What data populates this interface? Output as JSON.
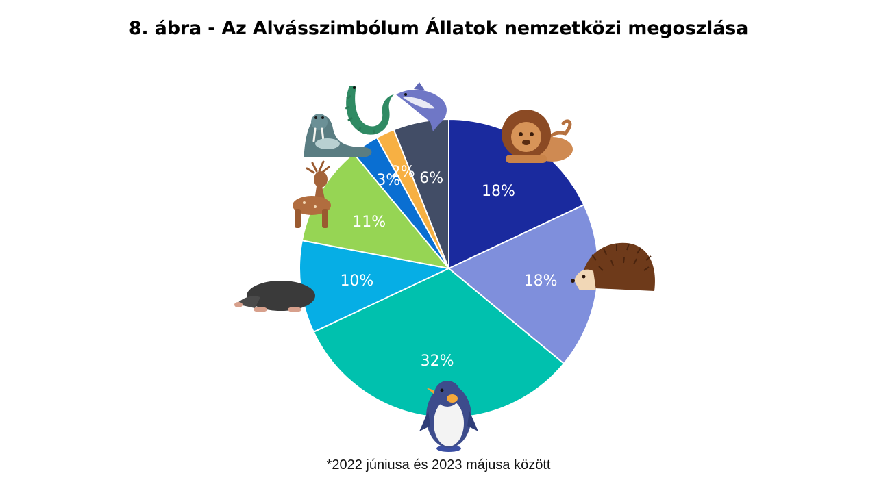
{
  "title": "8. ábra - Az Alvásszimbólum Állatok nemzetközi megoszlása",
  "footnote": "*2022 júniusa és 2023 májusa között",
  "chart_data": {
    "type": "pie",
    "start_angle_deg": 0,
    "direction": "clockwise",
    "slices": [
      {
        "label": "18%",
        "value": 18,
        "color": "#1a2a9e",
        "animal": "lion-icon"
      },
      {
        "label": "18%",
        "value": 18,
        "color": "#7f8fdc",
        "animal": "hedgehog-icon"
      },
      {
        "label": "32%",
        "value": 32,
        "color": "#00c1ae",
        "animal": "penguin-icon"
      },
      {
        "label": "10%",
        "value": 10,
        "color": "#06aee5",
        "animal": "mole-icon"
      },
      {
        "label": "11%",
        "value": 11,
        "color": "#96d554",
        "animal": "deer-icon"
      },
      {
        "label": "3%",
        "value": 3,
        "color": "#0a6fd2",
        "animal": "walrus-icon"
      },
      {
        "label": "2%",
        "value": 2,
        "color": "#f7b043",
        "animal": "crocodile-icon"
      },
      {
        "label": "6%",
        "value": 6,
        "color": "#424d66",
        "animal": "shark-icon"
      }
    ]
  }
}
